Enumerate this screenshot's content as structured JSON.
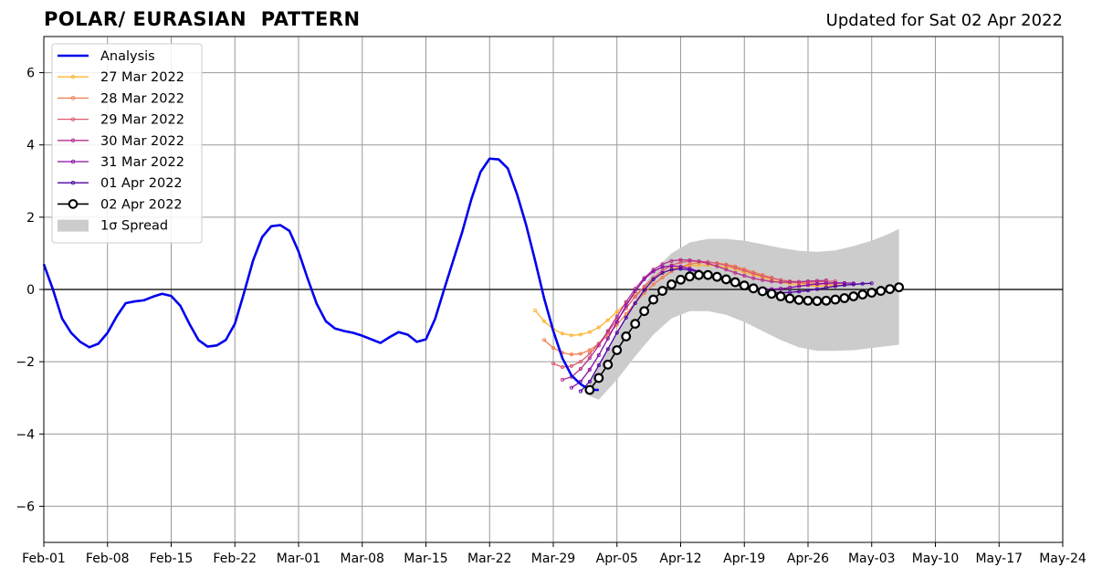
{
  "chart_data": {
    "type": "line",
    "title": "POLAR/ EURASIAN  PATTERN",
    "subtitle": "Updated for Sat 02 Apr 2022",
    "xlabel": "",
    "ylabel": "",
    "ylim": [
      -7,
      7
    ],
    "xlim": [
      "2022-02-01",
      "2022-05-24"
    ],
    "grid": true,
    "legend_position": "top-left",
    "x_tick_labels": [
      "Feb-01",
      "Feb-08",
      "Feb-15",
      "Feb-22",
      "Mar-01",
      "Mar-08",
      "Mar-15",
      "Mar-22",
      "Mar-29",
      "Apr-05",
      "Apr-12",
      "Apr-19",
      "Apr-26",
      "May-03",
      "May-10",
      "May-17",
      "May-24"
    ],
    "x_tick_dates": [
      "2022-02-01",
      "2022-02-08",
      "2022-02-15",
      "2022-02-22",
      "2022-03-01",
      "2022-03-08",
      "2022-03-15",
      "2022-03-22",
      "2022-03-29",
      "2022-04-05",
      "2022-04-12",
      "2022-04-19",
      "2022-04-26",
      "2022-05-03",
      "2022-05-10",
      "2022-05-17",
      "2022-05-24"
    ],
    "y_ticks": [
      -6,
      -4,
      -2,
      0,
      2,
      4,
      6
    ],
    "y_tick_labels": [
      "−6",
      "−4",
      "−2",
      "0",
      "2",
      "4",
      "6"
    ],
    "analysis": {
      "name": "Analysis",
      "color": "#0000ee",
      "start_date": "2022-02-01",
      "values": [
        0.7,
        0,
        -0.8,
        -1.2,
        -1.45,
        -1.6,
        -1.5,
        -1.2,
        -0.75,
        -0.38,
        -0.33,
        -0.3,
        -0.2,
        -0.12,
        -0.18,
        -0.45,
        -0.95,
        -1.4,
        -1.58,
        -1.55,
        -1.4,
        -0.95,
        -0.1,
        0.8,
        1.45,
        1.75,
        1.78,
        1.62,
        1.05,
        0.3,
        -0.4,
        -0.88,
        -1.08,
        -1.15,
        -1.2,
        -1.28,
        -1.38,
        -1.48,
        -1.32,
        -1.18,
        -1.25,
        -1.45,
        -1.38,
        -0.82,
        0,
        0.8,
        1.6,
        2.5,
        3.25,
        3.62,
        3.6,
        3.35,
        2.65,
        1.8,
        0.8,
        -0.25,
        -1.15,
        -1.9,
        -2.38,
        -2.62,
        -2.78,
        -2.78
      ]
    },
    "forecasts": [
      {
        "name": "27 Mar 2022",
        "color": "#fdb42f",
        "start_date": "2022-03-27",
        "values": [
          -0.58,
          -0.88,
          -1.1,
          -1.22,
          -1.27,
          -1.25,
          -1.18,
          -1.05,
          -0.85,
          -0.62,
          -0.38,
          -0.15,
          0.08,
          0.28,
          0.45,
          0.56,
          0.63,
          0.66,
          0.67,
          0.67,
          0.65,
          0.62,
          0.56,
          0.48,
          0.4,
          0.33,
          0.26,
          0.2,
          0.16,
          0.13,
          0.11,
          0.1,
          0.1,
          0.11,
          0.13
        ]
      },
      {
        "name": "28 Mar 2022",
        "color": "#ef7d4e",
        "start_date": "2022-03-28",
        "values": [
          -1.4,
          -1.62,
          -1.75,
          -1.8,
          -1.78,
          -1.68,
          -1.5,
          -1.26,
          -0.98,
          -0.68,
          -0.38,
          -0.1,
          0.14,
          0.33,
          0.5,
          0.62,
          0.7,
          0.74,
          0.75,
          0.73,
          0.69,
          0.64,
          0.56,
          0.48,
          0.4,
          0.33,
          0.26,
          0.21,
          0.18,
          0.16,
          0.15,
          0.15,
          0.16,
          0.18
        ]
      },
      {
        "name": "29 Mar 2022",
        "color": "#dc5b70",
        "start_date": "2022-03-29",
        "values": [
          -2.05,
          -2.15,
          -2.12,
          -2.0,
          -1.78,
          -1.5,
          -1.18,
          -0.85,
          -0.52,
          -0.2,
          0.08,
          0.32,
          0.52,
          0.67,
          0.75,
          0.78,
          0.78,
          0.76,
          0.72,
          0.67,
          0.6,
          0.52,
          0.44,
          0.37,
          0.31,
          0.26,
          0.23,
          0.21,
          0.2,
          0.21,
          0.22,
          0.23
        ]
      },
      {
        "name": "30 Mar 2022",
        "color": "#b52f8c",
        "start_date": "2022-03-30",
        "values": [
          -2.5,
          -2.42,
          -2.2,
          -1.9,
          -1.55,
          -1.15,
          -0.75,
          -0.35,
          0.02,
          0.32,
          0.55,
          0.7,
          0.79,
          0.82,
          0.81,
          0.78,
          0.72,
          0.64,
          0.55,
          0.46,
          0.38,
          0.31,
          0.26,
          0.22,
          0.2,
          0.2,
          0.21,
          0.23,
          0.24,
          0.25
        ]
      },
      {
        "name": "31 Mar 2022",
        "color": "#8b0aa5",
        "start_date": "2022-03-31",
        "values": [
          -2.72,
          -2.55,
          -2.22,
          -1.82,
          -1.36,
          -0.9,
          -0.45,
          -0.05,
          0.28,
          0.5,
          0.62,
          0.65,
          0.63,
          0.58,
          0.5,
          0.42,
          0.34,
          0.25,
          0.17,
          0.1,
          0.05,
          0.02,
          0.01,
          0.02,
          0.05,
          0.09,
          0.12,
          0.15,
          0.17,
          0.18,
          0.18,
          0.17
        ]
      },
      {
        "name": "01 Apr 2022",
        "color": "#4c02a1",
        "start_date": "2022-04-01",
        "values": [
          -2.82,
          -2.55,
          -2.1,
          -1.65,
          -1.2,
          -0.78,
          -0.38,
          -0.02,
          0.28,
          0.46,
          0.55,
          0.57,
          0.54,
          0.48,
          0.4,
          0.32,
          0.23,
          0.14,
          0.06,
          -0.01,
          -0.05,
          -0.08,
          -0.09,
          -0.08,
          -0.06,
          -0.03,
          0.01,
          0.05,
          0.09,
          0.12,
          0.14,
          0.16,
          0.17
        ]
      }
    ],
    "latest": {
      "name": "02 Apr 2022",
      "color": "#000000",
      "start_date": "2022-04-02",
      "values": [
        -2.78,
        -2.45,
        -2.08,
        -1.68,
        -1.3,
        -0.95,
        -0.6,
        -0.28,
        -0.04,
        0.14,
        0.27,
        0.36,
        0.4,
        0.4,
        0.35,
        0.28,
        0.2,
        0.11,
        0.03,
        -0.05,
        -0.12,
        -0.19,
        -0.25,
        -0.29,
        -0.31,
        -0.32,
        -0.31,
        -0.28,
        -0.24,
        -0.19,
        -0.14,
        -0.09,
        -0.04,
        0.01,
        0.06
      ]
    },
    "spread": {
      "name": "1σ Spread",
      "color": "#cccccc",
      "dates": [
        "2022-04-02",
        "2022-04-03",
        "2022-04-05",
        "2022-04-07",
        "2022-04-09",
        "2022-04-11",
        "2022-04-13",
        "2022-04-15",
        "2022-04-17",
        "2022-04-19",
        "2022-04-21",
        "2022-04-23",
        "2022-04-25",
        "2022-04-27",
        "2022-04-29",
        "2022-05-01",
        "2022-05-03",
        "2022-05-05",
        "2022-05-06"
      ],
      "upper": [
        -2.55,
        -2.1,
        -1.2,
        -0.25,
        0.5,
        1.0,
        1.3,
        1.4,
        1.4,
        1.35,
        1.25,
        1.15,
        1.07,
        1.04,
        1.08,
        1.2,
        1.35,
        1.55,
        1.68
      ],
      "lower": [
        -2.95,
        -3.05,
        -2.5,
        -1.85,
        -1.25,
        -0.8,
        -0.6,
        -0.6,
        -0.7,
        -0.9,
        -1.15,
        -1.4,
        -1.6,
        -1.7,
        -1.7,
        -1.68,
        -1.62,
        -1.56,
        -1.53
      ]
    }
  }
}
